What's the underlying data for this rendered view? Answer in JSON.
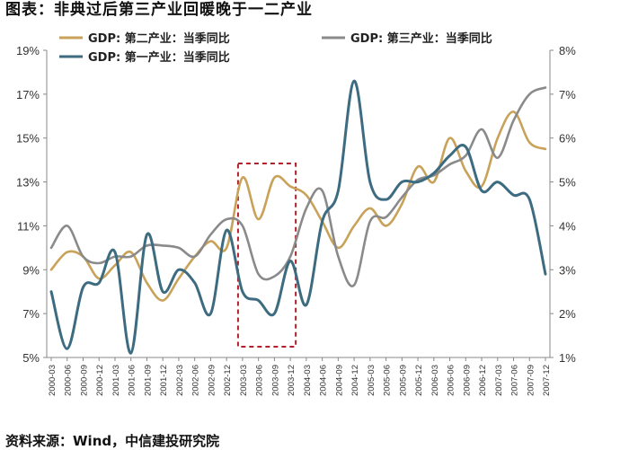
{
  "figure": {
    "title": "图表：非典过后第三产业回暖晚于一二产业",
    "source": "资料来源：Wind，中信建投研究院"
  },
  "chart_data": {
    "type": "line",
    "x": [
      "2000-03",
      "2000-06",
      "2000-09",
      "2000-12",
      "2001-03",
      "2001-06",
      "2001-09",
      "2001-12",
      "2002-03",
      "2002-06",
      "2002-09",
      "2002-12",
      "2003-03",
      "2003-06",
      "2003-09",
      "2003-12",
      "2004-03",
      "2004-06",
      "2004-09",
      "2004-12",
      "2005-03",
      "2005-06",
      "2005-09",
      "2005-12",
      "2006-03",
      "2006-06",
      "2006-09",
      "2006-12",
      "2007-03",
      "2007-06",
      "2007-09",
      "2007-12"
    ],
    "left_axis": {
      "ticks": [
        "19%",
        "17%",
        "15%",
        "13%",
        "11%",
        "9%",
        "7%",
        "5%"
      ],
      "ylim": [
        5,
        19
      ]
    },
    "right_axis": {
      "ticks": [
        "8%",
        "7%",
        "6%",
        "5%",
        "4%",
        "3%",
        "2%",
        "1%"
      ],
      "ylim": [
        1,
        8
      ]
    },
    "series": [
      {
        "name": "GDP: 第二产业：当季同比",
        "axis": "left",
        "color": "#c9a25a",
        "values": [
          9.0,
          9.8,
          9.6,
          8.6,
          9.2,
          9.8,
          8.4,
          7.6,
          8.6,
          9.6,
          10.3,
          10.0,
          13.2,
          11.3,
          13.2,
          12.8,
          12.4,
          11.2,
          10.0,
          11.0,
          11.8,
          11.0,
          12.0,
          13.7,
          13.0,
          15.0,
          13.5,
          12.8,
          15.0,
          16.2,
          14.8,
          14.5
        ]
      },
      {
        "name": "GDP: 第三产业：当季同比",
        "axis": "left",
        "color": "#8a8a8a",
        "values": [
          10.0,
          11.0,
          9.6,
          9.3,
          9.6,
          9.6,
          10.1,
          10.1,
          10.0,
          9.6,
          10.6,
          11.3,
          11.0,
          8.8,
          8.7,
          9.6,
          11.8,
          12.6,
          9.6,
          8.3,
          11.2,
          11.4,
          12.3,
          13.1,
          13.3,
          13.8,
          14.2,
          15.4,
          14.1,
          15.8,
          17.0,
          17.3
        ]
      },
      {
        "name": "GDP: 第一产业：当季同比",
        "axis": "right",
        "color": "#3d6b80",
        "values": [
          2.5,
          1.2,
          2.6,
          2.7,
          3.4,
          1.1,
          3.8,
          2.5,
          3.0,
          2.7,
          2.0,
          3.9,
          2.5,
          2.3,
          2.0,
          3.2,
          2.2,
          4.1,
          4.8,
          7.3,
          5.0,
          4.6,
          5.0,
          5.0,
          5.2,
          5.6,
          5.8,
          4.8,
          5.0,
          4.7,
          4.6,
          2.9
        ]
      }
    ],
    "highlight_period": [
      "2003-03",
      "2003-12"
    ],
    "grid": false,
    "legend": "top"
  }
}
